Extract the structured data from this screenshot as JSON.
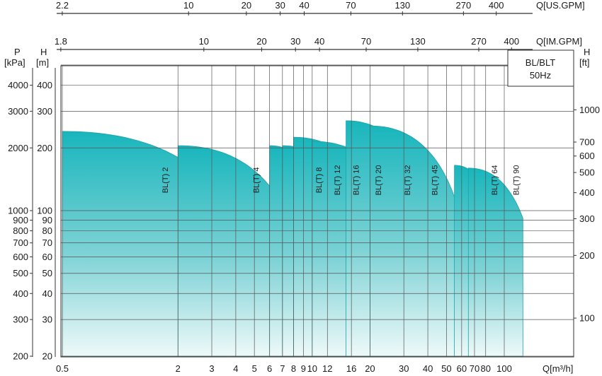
{
  "chart_data": {
    "type": "area",
    "title_box": {
      "line1": "BL/BLT",
      "line2": "50Hz"
    },
    "x_axis": {
      "label": "Q[m³/h]",
      "scale": "log",
      "range": [
        0.5,
        130
      ],
      "ticks": [
        "0.5",
        "2",
        "3",
        "4",
        "5",
        "6",
        "7",
        "8",
        "9",
        "10",
        "12",
        "16",
        "20",
        "30",
        "40",
        "50",
        "60",
        "70",
        "80",
        "100"
      ]
    },
    "x_axis_us": {
      "label": "Q[US.GPM]",
      "ticks": [
        "2.2",
        "10",
        "20",
        "30",
        "40",
        "70",
        "130",
        "270",
        "400"
      ]
    },
    "x_axis_im": {
      "label": "Q[IM.GPM]",
      "ticks": [
        "1.8",
        "10",
        "20",
        "30",
        "40",
        "70",
        "130",
        "270",
        "400"
      ]
    },
    "y_axis_m": {
      "label_line1": "H",
      "label_line2": "[m]",
      "scale": "log",
      "range": [
        20,
        500
      ],
      "ticks": [
        "20",
        "30",
        "40",
        "50",
        "60",
        "70",
        "80",
        "90",
        "100",
        "200",
        "300",
        "400"
      ]
    },
    "y_axis_kpa": {
      "label_line1": "P",
      "label_line2": "[kPa]",
      "ticks": [
        "200",
        "300",
        "400",
        "500",
        "600",
        "700",
        "800",
        "900",
        "1000",
        "2000",
        "3000",
        "4000"
      ]
    },
    "y_axis_ft": {
      "label_line1": "H",
      "label_line2": "[ft]",
      "ticks": [
        "100",
        "200",
        "300",
        "400",
        "500",
        "600",
        "700",
        "1000"
      ]
    },
    "grid": true,
    "series": [
      {
        "name": "BL(T) 2",
        "qmin": 0.5,
        "qmax": 3.6,
        "h0": 240,
        "hend": 110
      },
      {
        "name": "BL(T) 4",
        "qmin": 2,
        "qmax": 8,
        "h0": 205,
        "hend": 82
      },
      {
        "name": "BL(T) 8",
        "qmin": 6,
        "qmax": 12,
        "h0": 205,
        "hend": 100
      },
      {
        "name": "BL(T) 12",
        "qmin": 7,
        "qmax": 16,
        "h0": 205,
        "hend": 100
      },
      {
        "name": "BL(T) 16",
        "qmin": 8,
        "qmax": 22,
        "h0": 225,
        "hend": 100
      },
      {
        "name": "BL(T) 20",
        "qmin": 10,
        "qmax": 30,
        "h0": 215,
        "hend": 100
      },
      {
        "name": "BL(T) 32",
        "qmin": 15,
        "qmax": 40,
        "h0": 270,
        "hend": 100
      },
      {
        "name": "BL(T) 45",
        "qmin": 20,
        "qmax": 58,
        "h0": 255,
        "hend": 100
      },
      {
        "name": "BL(T) 64",
        "qmin": 55,
        "qmax": 88,
        "h0": 165,
        "hend": 100
      },
      {
        "name": "BL(T) 90",
        "qmin": 65,
        "qmax": 125,
        "h0": 160,
        "hend": 92
      }
    ]
  }
}
